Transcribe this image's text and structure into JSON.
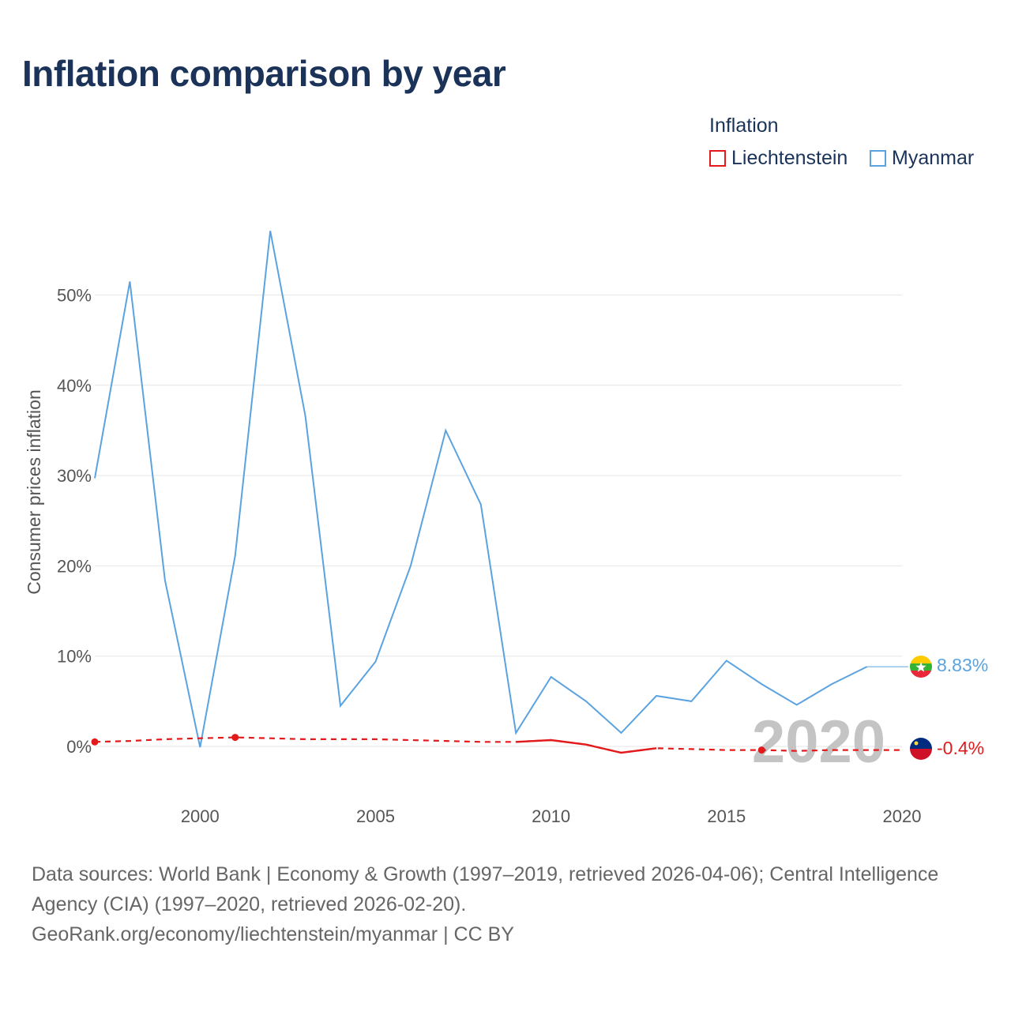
{
  "title": "Inflation comparison by year",
  "legend": {
    "title": "Inflation",
    "items": [
      {
        "label": "Liechtenstein",
        "color": "#e31a1c"
      },
      {
        "label": "Myanmar",
        "color": "#5ba3e0"
      }
    ]
  },
  "footer": {
    "line1": "Data sources: World Bank | Economy & Growth (1997–2019, retrieved 2026-04-06); Central Intelligence Agency (CIA) (1997–2020, retrieved 2026-02-20).",
    "line2": "GeoRank.org/economy/liechtenstein/myanmar | CC BY"
  },
  "chart_data": {
    "type": "line",
    "title": "Inflation comparison by year",
    "xlabel": "",
    "ylabel": "Consumer prices inflation",
    "xlim": [
      1997,
      2020
    ],
    "ylim": [
      -5,
      60
    ],
    "x_ticks": [
      2000,
      2005,
      2010,
      2015,
      2020
    ],
    "x_tick_labels": [
      "2000",
      "2005",
      "2010",
      "2015",
      "2020"
    ],
    "y_ticks": [
      0,
      10,
      20,
      30,
      40,
      50
    ],
    "y_tick_labels": [
      "0%",
      "10%",
      "20%",
      "30%",
      "40%",
      "50%"
    ],
    "grid": true,
    "current_year": "2020",
    "series": [
      {
        "name": "Myanmar",
        "color": "#5ba3e0",
        "end_label": "8.83%",
        "x": [
          1997,
          1998,
          1999,
          2000,
          2001,
          2002,
          2003,
          2004,
          2005,
          2006,
          2007,
          2008,
          2009,
          2010,
          2011,
          2012,
          2013,
          2014,
          2015,
          2016,
          2017,
          2018,
          2019,
          2020
        ],
        "values": [
          29.7,
          51.5,
          18.4,
          -0.1,
          21.1,
          57.1,
          36.6,
          4.5,
          9.4,
          20.0,
          35.0,
          26.8,
          1.5,
          7.7,
          5.0,
          1.5,
          5.6,
          5.0,
          9.5,
          6.9,
          4.6,
          6.9,
          8.83,
          8.83
        ]
      },
      {
        "name": "Liechtenstein",
        "color": "#e31a1c",
        "end_label": "-0.4%",
        "x": [
          1997,
          1998,
          1999,
          2000,
          2001,
          2002,
          2003,
          2004,
          2005,
          2006,
          2007,
          2008,
          2009,
          2010,
          2011,
          2012,
          2013,
          2014,
          2015,
          2016,
          2017,
          2018,
          2019,
          2020
        ],
        "values": [
          0.5,
          0.6,
          0.8,
          0.9,
          1.0,
          0.9,
          0.8,
          0.8,
          0.8,
          0.7,
          0.6,
          0.5,
          0.5,
          0.7,
          0.2,
          -0.7,
          -0.2,
          -0.3,
          -0.4,
          -0.4,
          -0.5,
          -0.4,
          -0.4,
          -0.4
        ],
        "solid": [
          [
            2009,
            2013
          ]
        ],
        "markers": [
          1997,
          2001,
          2016
        ]
      }
    ]
  }
}
